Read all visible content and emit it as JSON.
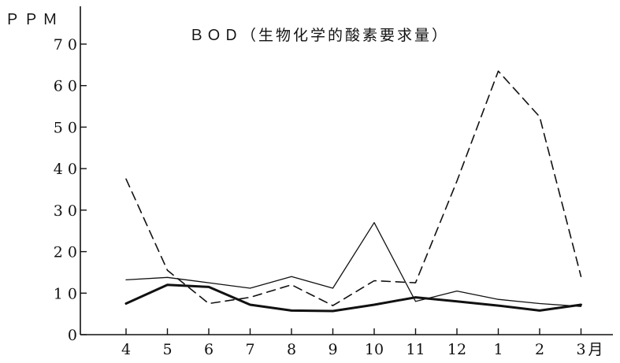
{
  "chart_data": {
    "type": "line",
    "title": "ＢＯＤ（生物化学的酸素要求量）",
    "ylabel": "ＰＰＭ",
    "xlabel": "月",
    "categories": [
      "4",
      "5",
      "6",
      "7",
      "8",
      "9",
      "10",
      "11",
      "12",
      "1",
      "2",
      "3"
    ],
    "yticks": [
      "0",
      "1 0",
      "2 0",
      "3 0",
      "4 0",
      "5 0",
      "6 0",
      "7 0"
    ],
    "ylim": [
      0,
      75
    ],
    "grid": false,
    "legend": "none",
    "series": [
      {
        "style": "dashed",
        "color": "#111111",
        "values": [
          37.5,
          15.5,
          7.5,
          9,
          12,
          7,
          13,
          12.5,
          37,
          63.5,
          52.5,
          14
        ]
      },
      {
        "style": "thin",
        "color": "#111111",
        "values": [
          13.2,
          13.8,
          12.5,
          11.2,
          14,
          11.2,
          27,
          8,
          10.5,
          8.5,
          7.5,
          6.8
        ]
      },
      {
        "style": "thick",
        "color": "#111111",
        "values": [
          7.5,
          12,
          11.5,
          7.2,
          5.8,
          5.7,
          7.2,
          9,
          8,
          7,
          5.8,
          7.2
        ]
      }
    ]
  }
}
